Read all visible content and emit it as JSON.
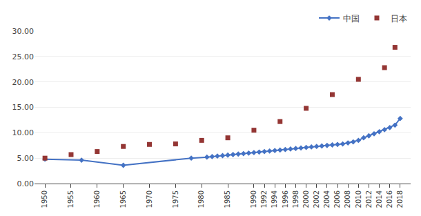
{
  "chart_data": {
    "type": "line",
    "series": [
      {
        "name": "中国",
        "type": "line",
        "color": "#4472C4",
        "marker": "diamond",
        "line_style": "solid",
        "x": [
          1950,
          1957,
          1965,
          1978,
          1981,
          1982,
          1983,
          1984,
          1985,
          1986,
          1987,
          1988,
          1989,
          1990,
          1991,
          1992,
          1993,
          1994,
          1995,
          1996,
          1997,
          1998,
          1999,
          2000,
          2001,
          2002,
          2003,
          2004,
          2005,
          2006,
          2007,
          2008,
          2009,
          2010,
          2011,
          2012,
          2013,
          2014,
          2015,
          2016,
          2017,
          2018
        ],
        "values": [
          4.8,
          4.6,
          3.6,
          5.0,
          5.2,
          5.3,
          5.4,
          5.5,
          5.6,
          5.7,
          5.8,
          5.9,
          6.0,
          6.1,
          6.2,
          6.3,
          6.4,
          6.5,
          6.6,
          6.7,
          6.8,
          6.9,
          7.0,
          7.1,
          7.2,
          7.3,
          7.4,
          7.5,
          7.6,
          7.7,
          7.8,
          8.0,
          8.2,
          8.5,
          9.0,
          9.4,
          9.8,
          10.2,
          10.6,
          11.0,
          11.5,
          12.8
        ]
      },
      {
        "name": "日本",
        "type": "scatter",
        "color": "#943634",
        "marker": "square",
        "x": [
          1950,
          1955,
          1960,
          1965,
          1970,
          1975,
          1980,
          1985,
          1990,
          1995,
          2000,
          2005,
          2010,
          2015,
          2017
        ],
        "values": [
          5.0,
          5.7,
          6.3,
          7.3,
          7.7,
          7.8,
          8.5,
          9.0,
          10.5,
          12.2,
          14.8,
          17.5,
          20.5,
          22.8,
          26.8
        ]
      }
    ],
    "xlim": [
      1948,
      2020
    ],
    "xticks": [
      1950,
      1955,
      1960,
      1965,
      1970,
      1975,
      1980,
      1985,
      1990,
      1992,
      1994,
      1996,
      1998,
      2000,
      2002,
      2004,
      2006,
      2008,
      2010,
      2012,
      2014,
      2016,
      2018
    ],
    "ylim": [
      0.0,
      30.0
    ],
    "yticks": [
      {
        "value": 0.0,
        "label": "0.00"
      },
      {
        "value": 5.0,
        "label": "5.00"
      },
      {
        "value": 10.0,
        "label": "10.00"
      },
      {
        "value": 15.0,
        "label": "15.00"
      },
      {
        "value": 20.0,
        "label": "20.00"
      },
      {
        "value": 25.0,
        "label": "25.00"
      },
      {
        "value": 30.0,
        "label": "30.00"
      }
    ],
    "grid": "y",
    "legend": "upper right"
  }
}
